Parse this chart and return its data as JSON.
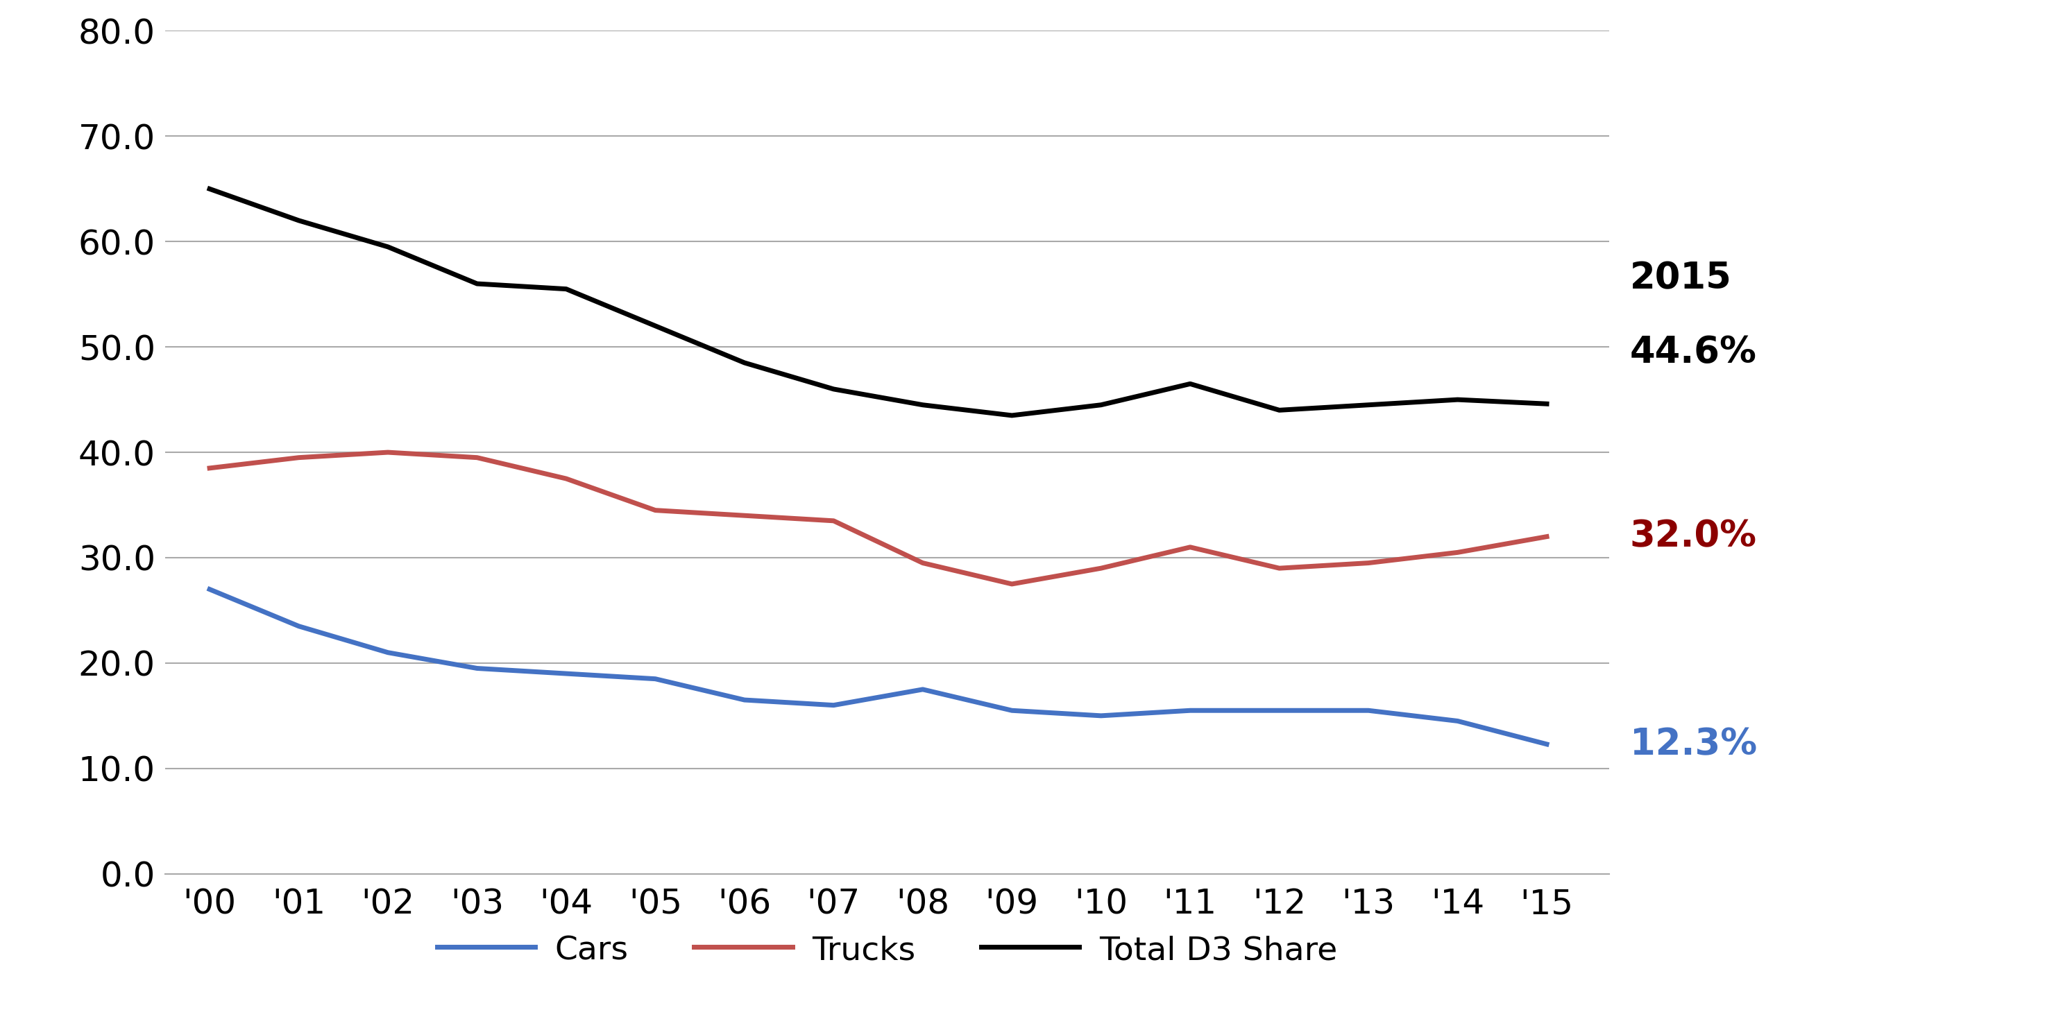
{
  "years": [
    2000,
    2001,
    2002,
    2003,
    2004,
    2005,
    2006,
    2007,
    2008,
    2009,
    2010,
    2011,
    2012,
    2013,
    2014,
    2015
  ],
  "year_labels": [
    "'00",
    "'01",
    "'02",
    "'03",
    "'04",
    "'05",
    "'06",
    "'07",
    "'08",
    "'09",
    "'10",
    "'11",
    "'12",
    "'13",
    "'14",
    "'15"
  ],
  "cars": [
    27.0,
    23.5,
    21.0,
    19.5,
    19.0,
    18.5,
    16.5,
    16.0,
    17.5,
    15.5,
    15.0,
    15.5,
    15.5,
    15.5,
    14.5,
    12.3
  ],
  "trucks": [
    38.5,
    39.5,
    40.0,
    39.5,
    37.5,
    34.5,
    34.0,
    33.5,
    29.5,
    27.5,
    29.0,
    31.0,
    29.0,
    29.5,
    30.5,
    32.0
  ],
  "total_d3": [
    65.0,
    62.0,
    59.5,
    56.0,
    55.5,
    52.0,
    48.5,
    46.0,
    44.5,
    43.5,
    44.5,
    46.5,
    44.0,
    44.5,
    45.0,
    44.6
  ],
  "cars_color": "#4472C4",
  "trucks_color": "#C0504D",
  "total_d3_color": "#000000",
  "annotation_2015_color": "#000000",
  "annotation_trucks_color": "#8B0000",
  "annotation_cars_color": "#4472C4",
  "ylim": [
    0.0,
    80.0
  ],
  "yticks": [
    0.0,
    10.0,
    20.0,
    30.0,
    40.0,
    50.0,
    60.0,
    70.0,
    80.0
  ],
  "grid_color": "#AAAAAA",
  "background_color": "#FFFFFF",
  "legend_labels": [
    "Cars",
    "Trucks",
    "Total D3 Share"
  ],
  "line_width": 5.0,
  "annotation_2015": "2015",
  "annotation_d3_val": "44.6%",
  "annotation_trucks_val": "32.0%",
  "annotation_cars_val": "12.3%",
  "tick_fontsize": 36,
  "annotation_fontsize": 38,
  "legend_fontsize": 34
}
